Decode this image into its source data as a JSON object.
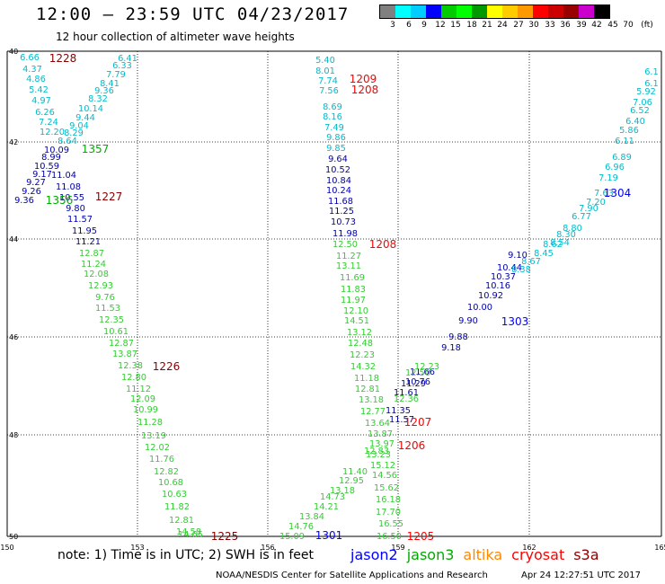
{
  "header": {
    "title": "12:00 – 23:59 UTC 04/23/2017",
    "subtitle": "12 hour collection of altimeter wave heights"
  },
  "legend": {
    "unit": "(ft)",
    "colors": [
      "#808080",
      "#00ffff",
      "#00ccff",
      "#0000ff",
      "#00cc00",
      "#00ff00",
      "#009900",
      "#ffff00",
      "#ffcc00",
      "#ff9900",
      "#ff0000",
      "#cc0000",
      "#990000",
      "#cc00cc",
      "#000000"
    ],
    "labels": [
      "3",
      "6",
      "9",
      "12",
      "15",
      "18",
      "21",
      "24",
      "27",
      "30",
      "33",
      "36",
      "39",
      "42",
      "45",
      "70"
    ]
  },
  "map": {
    "lon_ticks": [
      "150",
      "153",
      "156",
      "159",
      "162",
      "165"
    ],
    "lat_ticks": [
      "40",
      "42",
      "44",
      "46",
      "48",
      "50"
    ]
  },
  "colors": {
    "jason2": "#0000ff",
    "jason3": "#00aa00",
    "altika": "#ff8800",
    "cryosat": "#ff0000",
    "s3a": "#880000",
    "teal": "#00bbcc",
    "green": "#33cc33",
    "navy": "#0000aa"
  },
  "tracks": [
    {
      "color": "teal",
      "values": [
        "6.66",
        "4.37",
        "4.86",
        "5.42",
        "4.97",
        "6.26",
        "7.24",
        "12.20"
      ]
    },
    {
      "color": "teal",
      "values": [
        "6.41",
        "6.33",
        "7.79",
        "8.41",
        "9.36",
        "8.32",
        "10.14",
        "9.44",
        "9.04",
        "8.29",
        "8.64"
      ]
    },
    {
      "color": "navy",
      "values": [
        "10.09",
        "8.99",
        "10.59",
        "9.17",
        "9.27",
        "9.26",
        "9.36"
      ]
    },
    {
      "color": "navy",
      "values": [
        "11.04",
        "11.08",
        "10.55",
        "9.80",
        "11.57",
        "11.95",
        "11.21"
      ]
    },
    {
      "color": "green",
      "values": [
        "12.87",
        "11.24",
        "12.08",
        "12.93",
        "9.76",
        "11.53",
        "12.35",
        "10.61",
        "12.87",
        "13.87",
        "12.38",
        "12.80",
        "11.12",
        "12.09",
        "10.99",
        "11.28",
        "13.19",
        "12.02",
        "11.76",
        "12.82",
        "10.68",
        "10.63",
        "11.82",
        "12.81",
        "14.58",
        "14.65"
      ]
    },
    {
      "color": "teal",
      "values": [
        "5.40",
        "8.01",
        "7.74",
        "7.56",
        "8.69",
        "8.16",
        "7.49",
        "9.86",
        "9.85"
      ]
    },
    {
      "color": "navy",
      "values": [
        "9.64",
        "10.52",
        "10.84",
        "10.24",
        "11.68",
        "11.25",
        "10.73",
        "11.98"
      ]
    },
    {
      "color": "green",
      "values": [
        "12.50",
        "11.27",
        "13.11",
        "11.69",
        "11.83",
        "11.97",
        "12.10",
        "14.51",
        "13.12",
        "12.48",
        "12.23",
        "14.32",
        "11.18",
        "12.81",
        "13.18",
        "12.77",
        "13.64",
        "13.87",
        "13.97",
        "12.83",
        "13.23",
        "15.12",
        "14.56",
        "15.62",
        "16.18",
        "17.70",
        "16.55",
        "16.50"
      ]
    },
    {
      "color": "green",
      "values": [
        "15.09",
        "14.76",
        "13.84",
        "14.21",
        "14.73",
        "13.18",
        "12.95",
        "11.40"
      ]
    },
    {
      "color": "navy",
      "values": [
        "11.35",
        "11.57",
        "11.61",
        "11.29",
        "10.76",
        "11.66",
        "9.18",
        "9.88",
        "9.90",
        "10.00",
        "10.92",
        "10.16",
        "10.37",
        "10.44",
        "9.10"
      ]
    },
    {
      "color": "green",
      "values": [
        "12.36",
        "12.50",
        "12.23"
      ]
    },
    {
      "color": "teal",
      "values": [
        "6.1",
        "6.1",
        "5.92",
        "7.06",
        "6.52",
        "6.40",
        "5.86",
        "6.11",
        "6.89",
        "6.96",
        "7.19",
        "7.63",
        "7.20",
        "7.90",
        "6.77",
        "8.80",
        "8.30",
        "8.54",
        "8.62",
        "8.45",
        "8.67",
        "8.38"
      ]
    }
  ],
  "track_ids": [
    {
      "text": "1228",
      "color": "s3a"
    },
    {
      "text": "1357",
      "color": "jason3"
    },
    {
      "text": "1356",
      "color": "jason3"
    },
    {
      "text": "1227",
      "color": "s3a"
    },
    {
      "text": "1226",
      "color": "s3a"
    },
    {
      "text": "1225",
      "color": "s3a"
    },
    {
      "text": "1209",
      "color": "cryosat"
    },
    {
      "text": "1208",
      "color": "cryosat"
    },
    {
      "text": "1208",
      "color": "cryosat"
    },
    {
      "text": "1207",
      "color": "cryosat"
    },
    {
      "text": "1206",
      "color": "cryosat"
    },
    {
      "text": "1205",
      "color": "cryosat"
    },
    {
      "text": "1301",
      "color": "jason2"
    },
    {
      "text": "1303",
      "color": "jason2"
    },
    {
      "text": "1304",
      "color": "jason2"
    }
  ],
  "note": "note: 1) Time is in UTC; 2) SWH is in feet",
  "satellites": [
    {
      "name": "jason2",
      "color": "jason2"
    },
    {
      "name": "jason3",
      "color": "jason3"
    },
    {
      "name": "altika",
      "color": "altika"
    },
    {
      "name": "cryosat",
      "color": "cryosat"
    },
    {
      "name": "s3a",
      "color": "s3a"
    }
  ],
  "footer": {
    "credit": "NOAA/NESDIS Center for Satellite Applications and Research",
    "timestamp": "Apr 24 12:27:51 UTC 2017"
  }
}
